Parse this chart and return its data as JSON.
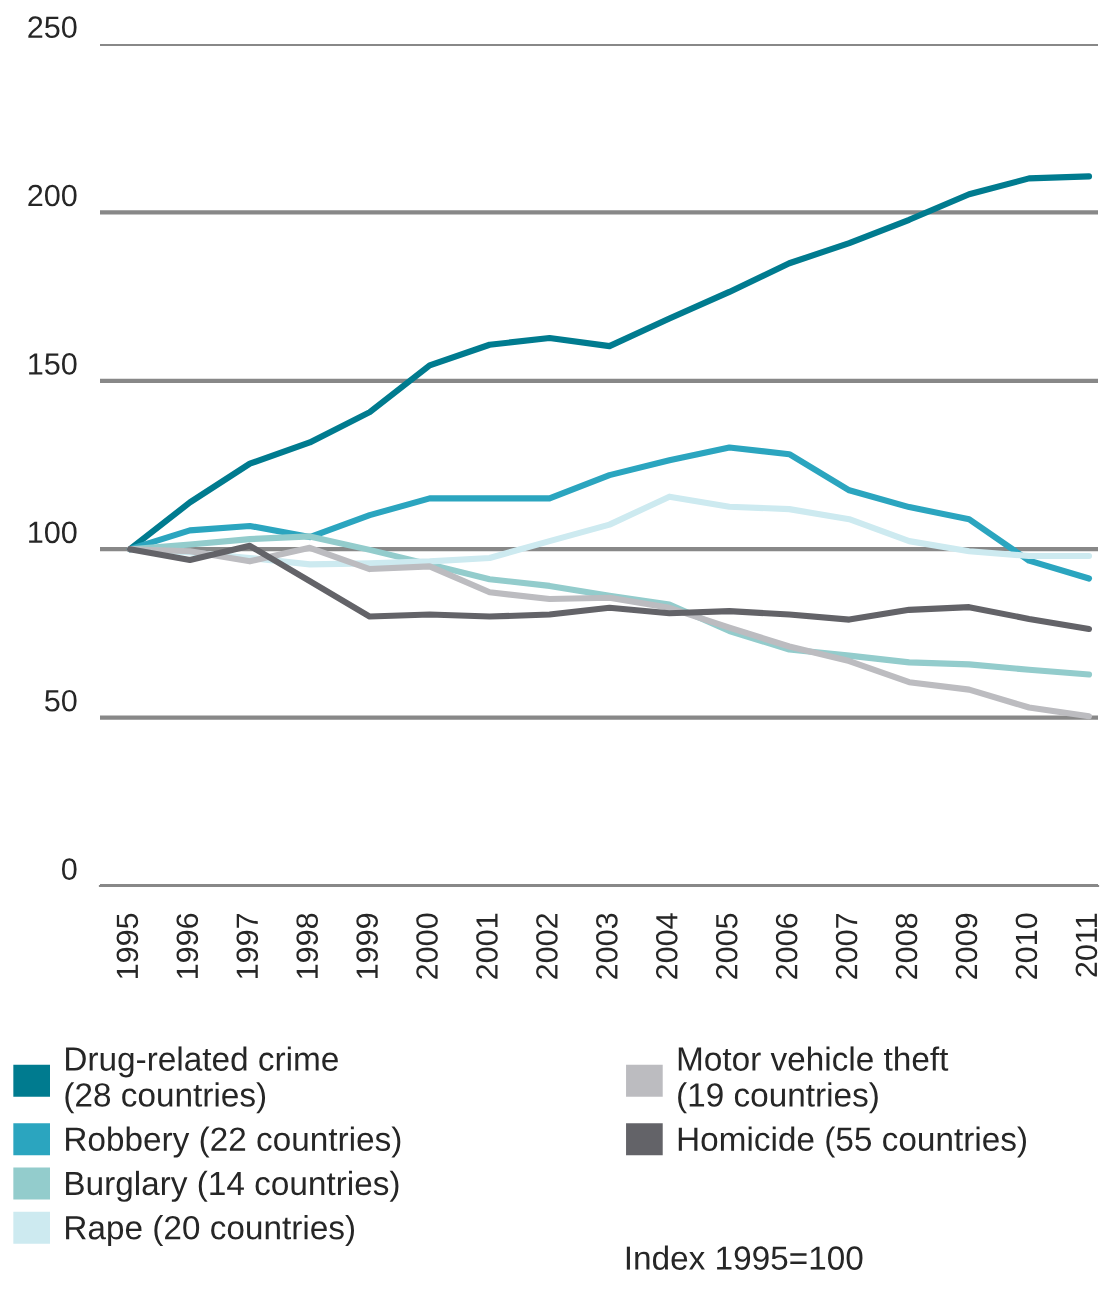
{
  "chart_data": {
    "type": "line",
    "x": [
      1995,
      1996,
      1997,
      1998,
      1999,
      2000,
      2001,
      2002,
      2003,
      2004,
      2005,
      2006,
      2007,
      2008,
      2009,
      2010,
      2011
    ],
    "series": [
      {
        "name": "Drug-related crime\n(28 countries)",
        "color": "#007b8f",
        "values": [
          100,
          113.9,
          125.4,
          131.7,
          140.7,
          154.6,
          160.7,
          162.7,
          160.3,
          168.5,
          176.4,
          184.9,
          190.9,
          197.8,
          205.4,
          210.1,
          210.7
        ]
      },
      {
        "name": "Robbery (22 countries)",
        "color": "#2ba5bf",
        "values": [
          100,
          105.6,
          106.9,
          103.6,
          110.1,
          115.1,
          115.1,
          115.1,
          122,
          126.4,
          130.2,
          128.2,
          117.5,
          112.5,
          108.9,
          96.6,
          91.3
        ]
      },
      {
        "name": "Burglary (14 countries)",
        "color": "#93cccc",
        "values": [
          100,
          101.4,
          103,
          103.8,
          99.8,
          95.5,
          91.1,
          89.1,
          86.2,
          83.6,
          75.7,
          70.2,
          68.4,
          66.4,
          65.8,
          64.2,
          62.8
        ]
      },
      {
        "name": "Rape (20 countries)",
        "color": "#cdeaf0",
        "values": [
          100,
          99,
          97.4,
          95.5,
          95.8,
          96.4,
          97.4,
          102.4,
          107.3,
          115.6,
          112.6,
          111.9,
          108.9,
          102.4,
          99.4,
          98,
          98
        ]
      },
      {
        "name": "Motor vehicle theft\n(19 countries)",
        "color": "#bcbcc0",
        "values": [
          100,
          99.4,
          96.4,
          100.4,
          94.1,
          94.9,
          87.2,
          85.2,
          85.6,
          82.6,
          76.7,
          71.1,
          66.8,
          60.5,
          58.3,
          53,
          50.4
        ]
      },
      {
        "name": "Homicide (55 countries)",
        "color": "#636368",
        "values": [
          100,
          96.8,
          101,
          90.5,
          80,
          80.6,
          80,
          80.6,
          82.6,
          81,
          81.6,
          80.6,
          79.1,
          82,
          82.8,
          79.3,
          76.3
        ]
      }
    ],
    "xlim": [
      1994.5,
      2011.15
    ],
    "xticks": [
      1995,
      1996,
      1997,
      1998,
      1999,
      2000,
      2001,
      2002,
      2003,
      2004,
      2005,
      2006,
      2007,
      2008,
      2009,
      2010,
      2011
    ],
    "ylim": [
      0,
      250
    ],
    "yticks": [
      0,
      50,
      100,
      150,
      200,
      250
    ],
    "grid": "y",
    "legend": "bottom",
    "annotations": [
      "Index 1995=100"
    ]
  }
}
